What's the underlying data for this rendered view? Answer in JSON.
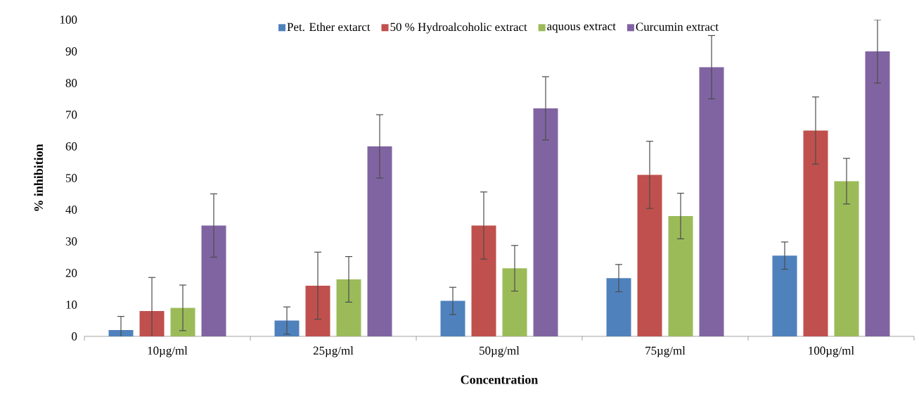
{
  "chart_data": {
    "type": "bar",
    "xlabel": "Concentration",
    "ylabel": "% inhibition",
    "categories": [
      "10µg/ml",
      "25µg/ml",
      "50µg/ml",
      "75µg/ml",
      "100µg/ml"
    ],
    "series": [
      {
        "name": "Pet. Ether extarct",
        "color": "#4f81bd",
        "values": [
          2,
          5,
          11.2,
          18.4,
          25.5
        ],
        "errors": [
          4.3,
          4.3,
          4.3,
          4.3,
          4.3
        ]
      },
      {
        "name": "50 % Hydroalcoholic extract",
        "color": "#c0504d",
        "values": [
          8,
          16,
          35,
          51,
          65
        ],
        "errors": [
          10.6,
          10.6,
          10.6,
          10.6,
          10.6
        ]
      },
      {
        "name": "aquous extract",
        "color": "#9bbb59",
        "values": [
          9,
          18,
          21.5,
          38,
          49
        ],
        "errors": [
          7.2,
          7.2,
          7.2,
          7.2,
          7.2
        ]
      },
      {
        "name": "Curcumin extract",
        "color": "#8064a2",
        "values": [
          35,
          60,
          72,
          85,
          90
        ],
        "errors": [
          10,
          10,
          10,
          10,
          10
        ]
      }
    ],
    "ylim": [
      0,
      100
    ],
    "yticks": [
      0,
      10,
      20,
      30,
      40,
      50,
      60,
      70,
      80,
      90,
      100
    ],
    "legend": "top"
  }
}
